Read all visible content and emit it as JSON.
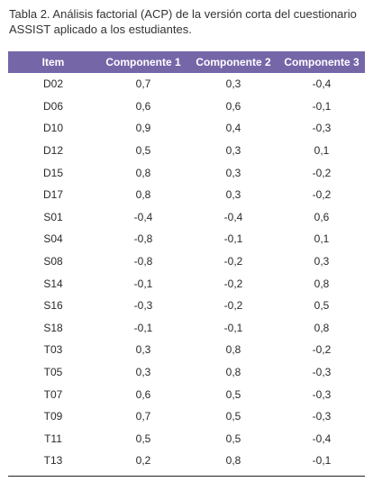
{
  "caption": "Tabla 2. Análisis factorial (ACP) de la versión corta del cuestionario ASSIST aplicado a los estudiantes.",
  "table": {
    "headers": [
      "Item",
      "Componente 1",
      "Componente 2",
      "Componente 3"
    ],
    "rows": [
      [
        "D02",
        "0,7",
        "0,3",
        "-0,4"
      ],
      [
        "D06",
        "0,6",
        "0,6",
        "-0,1"
      ],
      [
        "D10",
        "0,9",
        "0,4",
        "-0,3"
      ],
      [
        "D12",
        "0,5",
        "0,3",
        "0,1"
      ],
      [
        "D15",
        "0,8",
        "0,3",
        "-0,2"
      ],
      [
        "D17",
        "0,8",
        "0,3",
        "-0,2"
      ],
      [
        "S01",
        "-0,4",
        "-0,4",
        "0,6"
      ],
      [
        "S04",
        "-0,8",
        "-0,1",
        "0,1"
      ],
      [
        "S08",
        "-0,8",
        "-0,2",
        "0,3"
      ],
      [
        "S14",
        "-0,1",
        "-0,2",
        "0,8"
      ],
      [
        "S16",
        "-0,3",
        "-0,2",
        "0,5"
      ],
      [
        "S18",
        "-0,1",
        "-0,1",
        "0,8"
      ],
      [
        "T03",
        "0,3",
        "0,8",
        "-0,2"
      ],
      [
        "T05",
        "0,3",
        "0,8",
        "-0,3"
      ],
      [
        "T07",
        "0,6",
        "0,5",
        "-0,3"
      ],
      [
        "T09",
        "0,7",
        "0,5",
        "-0,3"
      ],
      [
        "T11",
        "0,5",
        "0,5",
        "-0,4"
      ],
      [
        "T13",
        "0,2",
        "0,8",
        "-0,1"
      ]
    ]
  },
  "colors": {
    "header_background": "#7566a8",
    "header_text": "#ffffff"
  }
}
